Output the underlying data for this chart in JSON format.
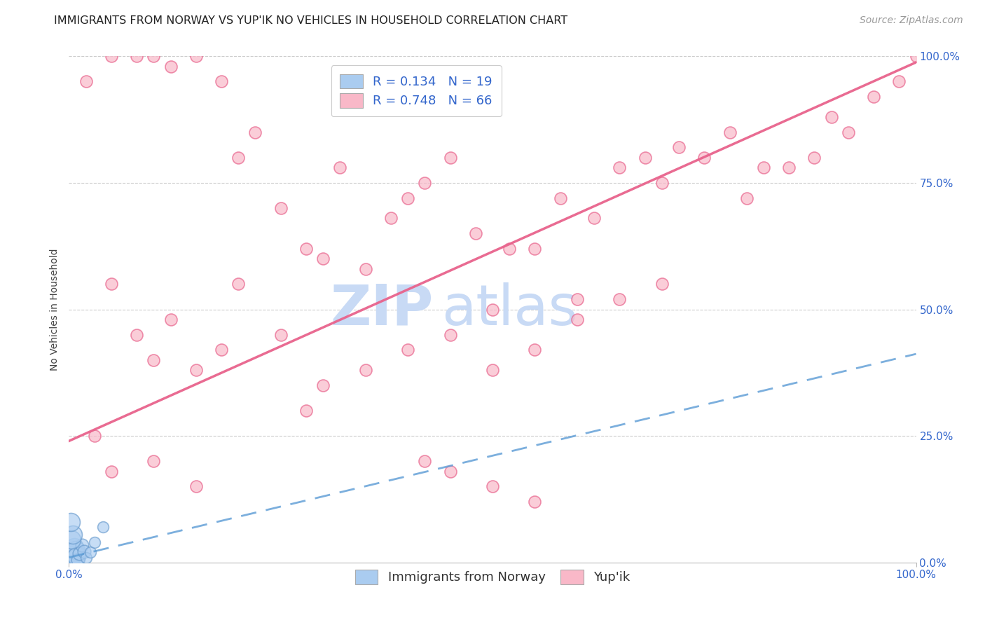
{
  "title": "IMMIGRANTS FROM NORWAY VS YUP'IK NO VEHICLES IN HOUSEHOLD CORRELATION CHART",
  "source": "Source: ZipAtlas.com",
  "ylabel": "No Vehicles in Household",
  "norway_r": 0.134,
  "norway_n": 19,
  "yupik_r": 0.748,
  "yupik_n": 66,
  "norway_color": "#aaccf0",
  "norway_edge": "#6699cc",
  "yupik_color": "#f9b8c8",
  "yupik_edge": "#e8638c",
  "norway_line_color": "#5b9bd5",
  "yupik_line_color": "#e8638c",
  "watermark_zip": "ZIP",
  "watermark_atlas": "atlas",
  "watermark_color": "#c8daf5",
  "background_color": "#ffffff",
  "grid_color": "#cccccc",
  "title_fontsize": 11.5,
  "axis_label_fontsize": 10,
  "tick_fontsize": 11,
  "legend_fontsize": 13,
  "source_fontsize": 10,
  "norway_points": [
    [
      0.2,
      0.5
    ],
    [
      0.3,
      1.0
    ],
    [
      0.4,
      2.0
    ],
    [
      0.5,
      1.5
    ],
    [
      0.6,
      3.0
    ],
    [
      0.7,
      0.8
    ],
    [
      0.8,
      2.5
    ],
    [
      0.9,
      1.2
    ],
    [
      1.0,
      0.5
    ],
    [
      1.2,
      1.8
    ],
    [
      1.5,
      3.5
    ],
    [
      1.8,
      2.2
    ],
    [
      2.0,
      1.0
    ],
    [
      2.5,
      2.0
    ],
    [
      3.0,
      4.0
    ],
    [
      0.3,
      4.5
    ],
    [
      0.5,
      5.5
    ],
    [
      4.0,
      7.0
    ],
    [
      0.2,
      8.0
    ]
  ],
  "yupik_points": [
    [
      2.0,
      95.0
    ],
    [
      5.0,
      100.0
    ],
    [
      8.0,
      100.0
    ],
    [
      10.0,
      100.0
    ],
    [
      12.0,
      98.0
    ],
    [
      15.0,
      100.0
    ],
    [
      18.0,
      95.0
    ],
    [
      20.0,
      80.0
    ],
    [
      22.0,
      85.0
    ],
    [
      25.0,
      70.0
    ],
    [
      28.0,
      62.0
    ],
    [
      30.0,
      60.0
    ],
    [
      32.0,
      78.0
    ],
    [
      35.0,
      58.0
    ],
    [
      38.0,
      68.0
    ],
    [
      40.0,
      72.0
    ],
    [
      42.0,
      75.0
    ],
    [
      45.0,
      80.0
    ],
    [
      48.0,
      65.0
    ],
    [
      50.0,
      50.0
    ],
    [
      52.0,
      62.0
    ],
    [
      55.0,
      62.0
    ],
    [
      58.0,
      72.0
    ],
    [
      60.0,
      52.0
    ],
    [
      62.0,
      68.0
    ],
    [
      65.0,
      78.0
    ],
    [
      68.0,
      80.0
    ],
    [
      70.0,
      75.0
    ],
    [
      72.0,
      82.0
    ],
    [
      75.0,
      80.0
    ],
    [
      78.0,
      85.0
    ],
    [
      80.0,
      72.0
    ],
    [
      82.0,
      78.0
    ],
    [
      85.0,
      78.0
    ],
    [
      88.0,
      80.0
    ],
    [
      90.0,
      88.0
    ],
    [
      92.0,
      85.0
    ],
    [
      95.0,
      92.0
    ],
    [
      98.0,
      95.0
    ],
    [
      100.0,
      100.0
    ],
    [
      5.0,
      55.0
    ],
    [
      8.0,
      45.0
    ],
    [
      10.0,
      40.0
    ],
    [
      12.0,
      48.0
    ],
    [
      15.0,
      38.0
    ],
    [
      18.0,
      42.0
    ],
    [
      20.0,
      55.0
    ],
    [
      25.0,
      45.0
    ],
    [
      28.0,
      30.0
    ],
    [
      30.0,
      35.0
    ],
    [
      35.0,
      38.0
    ],
    [
      40.0,
      42.0
    ],
    [
      45.0,
      45.0
    ],
    [
      50.0,
      38.0
    ],
    [
      55.0,
      42.0
    ],
    [
      60.0,
      48.0
    ],
    [
      65.0,
      52.0
    ],
    [
      70.0,
      55.0
    ],
    [
      3.0,
      25.0
    ],
    [
      5.0,
      18.0
    ],
    [
      10.0,
      20.0
    ],
    [
      15.0,
      15.0
    ],
    [
      42.0,
      20.0
    ],
    [
      45.0,
      18.0
    ],
    [
      50.0,
      15.0
    ],
    [
      55.0,
      12.0
    ]
  ],
  "ytick_vals": [
    0,
    25,
    50,
    75,
    100
  ],
  "ytick_labels": [
    "0.0%",
    "25.0%",
    "50.0%",
    "75.0%",
    "100.0%"
  ]
}
